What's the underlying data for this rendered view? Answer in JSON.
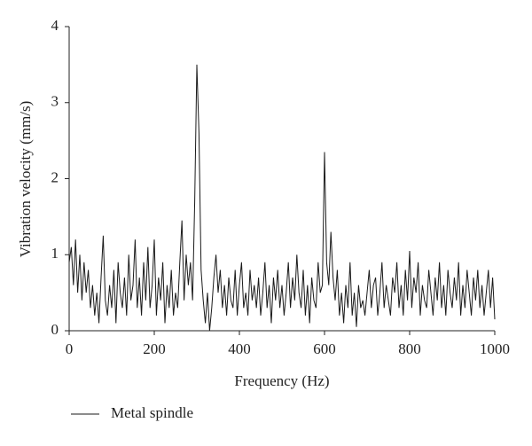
{
  "chart_data": {
    "type": "line",
    "xlabel": "Frequency (Hz)",
    "ylabel": "Vibration velocity (mm/s)",
    "x": [
      0,
      5,
      10,
      15,
      20,
      25,
      30,
      35,
      40,
      45,
      50,
      55,
      60,
      65,
      70,
      75,
      80,
      85,
      90,
      95,
      100,
      105,
      110,
      115,
      120,
      125,
      130,
      135,
      140,
      145,
      150,
      155,
      160,
      165,
      170,
      175,
      180,
      185,
      190,
      195,
      200,
      205,
      210,
      215,
      220,
      225,
      230,
      235,
      240,
      245,
      250,
      255,
      260,
      265,
      270,
      275,
      280,
      285,
      290,
      295,
      300,
      305,
      310,
      315,
      320,
      325,
      330,
      335,
      340,
      345,
      350,
      355,
      360,
      365,
      370,
      375,
      380,
      385,
      390,
      395,
      400,
      405,
      410,
      415,
      420,
      425,
      430,
      435,
      440,
      445,
      450,
      455,
      460,
      465,
      470,
      475,
      480,
      485,
      490,
      495,
      500,
      505,
      510,
      515,
      520,
      525,
      530,
      535,
      540,
      545,
      550,
      555,
      560,
      565,
      570,
      575,
      580,
      585,
      590,
      595,
      600,
      605,
      610,
      615,
      620,
      625,
      630,
      635,
      640,
      645,
      650,
      655,
      660,
      665,
      670,
      675,
      680,
      685,
      690,
      695,
      700,
      705,
      710,
      715,
      720,
      725,
      730,
      735,
      740,
      745,
      750,
      755,
      760,
      765,
      770,
      775,
      780,
      785,
      790,
      795,
      800,
      805,
      810,
      815,
      820,
      825,
      830,
      835,
      840,
      845,
      850,
      855,
      860,
      865,
      870,
      875,
      880,
      885,
      890,
      895,
      900,
      905,
      910,
      915,
      920,
      925,
      930,
      935,
      940,
      945,
      950,
      955,
      960,
      965,
      970,
      975,
      980,
      985,
      990,
      995,
      1000
    ],
    "series": [
      {
        "name": "Metal spindle",
        "color": "#1a1a1a",
        "values": [
          0.9,
          1.1,
          0.6,
          1.2,
          0.5,
          1.0,
          0.4,
          0.9,
          0.5,
          0.8,
          0.3,
          0.6,
          0.2,
          0.5,
          0.1,
          0.7,
          1.25,
          0.4,
          0.2,
          0.6,
          0.3,
          0.8,
          0.1,
          0.9,
          0.5,
          0.3,
          0.7,
          0.2,
          1.0,
          0.4,
          0.6,
          1.2,
          0.3,
          0.7,
          0.2,
          0.9,
          0.4,
          1.1,
          0.3,
          0.6,
          1.2,
          0.2,
          0.7,
          0.4,
          0.9,
          0.1,
          0.6,
          0.3,
          0.8,
          0.2,
          0.5,
          0.3,
          0.9,
          1.45,
          0.4,
          1.0,
          0.6,
          0.9,
          0.4,
          1.7,
          3.5,
          2.6,
          0.8,
          0.4,
          0.1,
          0.5,
          0.0,
          0.3,
          0.7,
          1.0,
          0.5,
          0.8,
          0.3,
          0.6,
          0.2,
          0.7,
          0.4,
          0.3,
          0.8,
          0.2,
          0.6,
          0.9,
          0.3,
          0.5,
          0.2,
          0.8,
          0.4,
          0.6,
          0.3,
          0.7,
          0.2,
          0.5,
          0.9,
          0.3,
          0.6,
          0.1,
          0.7,
          0.4,
          0.8,
          0.3,
          0.6,
          0.2,
          0.5,
          0.9,
          0.3,
          0.7,
          0.4,
          1.0,
          0.5,
          0.3,
          0.8,
          0.2,
          0.6,
          0.1,
          0.7,
          0.4,
          0.3,
          0.9,
          0.5,
          0.6,
          2.35,
          0.9,
          0.6,
          1.3,
          0.7,
          0.4,
          0.8,
          0.2,
          0.5,
          0.1,
          0.6,
          0.3,
          0.9,
          0.2,
          0.5,
          0.05,
          0.6,
          0.3,
          0.4,
          0.2,
          0.5,
          0.8,
          0.3,
          0.6,
          0.7,
          0.2,
          0.5,
          0.9,
          0.3,
          0.6,
          0.4,
          0.2,
          0.7,
          0.5,
          0.9,
          0.3,
          0.6,
          0.2,
          0.8,
          0.4,
          1.05,
          0.3,
          0.7,
          0.5,
          0.9,
          0.2,
          0.6,
          0.4,
          0.3,
          0.8,
          0.5,
          0.2,
          0.7,
          0.4,
          0.9,
          0.3,
          0.6,
          0.2,
          0.8,
          0.5,
          0.3,
          0.7,
          0.4,
          0.9,
          0.2,
          0.6,
          0.3,
          0.8,
          0.5,
          0.2,
          0.7,
          0.4,
          0.8,
          0.3,
          0.6,
          0.2,
          0.5,
          0.8,
          0.3,
          0.7,
          0.15
        ]
      }
    ],
    "xlim": [
      0,
      1000
    ],
    "xticks": [
      0,
      200,
      400,
      600,
      800,
      1000
    ],
    "ylim": [
      0,
      4
    ],
    "yticks": [
      0,
      1,
      2,
      3,
      4
    ],
    "grid": false,
    "legend": "bottom-left"
  }
}
